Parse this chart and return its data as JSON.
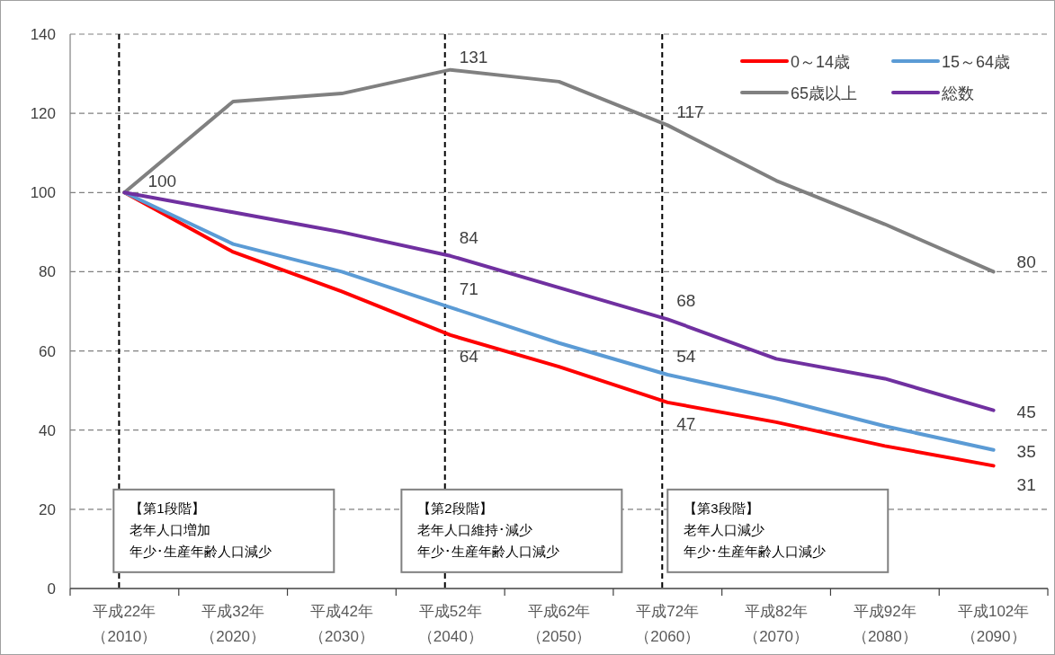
{
  "chart_data": {
    "type": "line",
    "categories": [
      "平成22年（2010）",
      "平成32年（2020）",
      "平成42年（2030）",
      "平成52年（2040）",
      "平成62年（2050）",
      "平成72年（2060）",
      "平成82年（2070）",
      "平成92年（2080）",
      "平成102年（2090）"
    ],
    "series": [
      {
        "name": "0～14歳",
        "color": "#ff0000",
        "values": [
          100,
          85,
          75,
          64,
          56,
          47,
          42,
          36,
          31
        ],
        "value_labels": [
          null,
          null,
          null,
          "64",
          null,
          "47",
          null,
          null,
          "31"
        ]
      },
      {
        "name": "15～64歳",
        "color": "#5b9bd5",
        "values": [
          100,
          87,
          80,
          71,
          62,
          54,
          48,
          41,
          35
        ],
        "value_labels": [
          null,
          null,
          null,
          "71",
          null,
          "54",
          null,
          null,
          "35"
        ]
      },
      {
        "name": "65歳以上",
        "color": "#808080",
        "values": [
          100,
          123,
          125,
          131,
          128,
          117,
          103,
          92,
          80
        ],
        "value_labels": [
          "100",
          null,
          null,
          "131",
          null,
          "117",
          null,
          null,
          "80"
        ]
      },
      {
        "name": "総数",
        "color": "#7030a0",
        "values": [
          100,
          95,
          90,
          84,
          76,
          68,
          58,
          53,
          45
        ],
        "value_labels": [
          null,
          null,
          null,
          "84",
          null,
          "68",
          null,
          null,
          "45"
        ]
      }
    ],
    "ylim": [
      0,
      140
    ],
    "yticks": [
      0,
      20,
      40,
      60,
      80,
      100,
      120,
      140
    ],
    "grid": "y",
    "legend": "top right",
    "marker": "none",
    "line_style": "solid",
    "ref_lines": [
      {
        "axis": "x",
        "value": "平成22年（2010）",
        "color": "#000000",
        "line_style": "dashed"
      },
      {
        "axis": "x",
        "value": "平成52年（2040）",
        "color": "#000000",
        "line_style": "dashed"
      },
      {
        "axis": "x",
        "value": "平成72年（2060）",
        "color": "#000000",
        "line_style": "dashed"
      }
    ],
    "annotations": [
      "【第1段階】",
      "老年人口増加",
      "年少･生産年齢人口減少",
      "【第2段階】",
      "老年人口維持･減少",
      "年少･生産年齢人口減少",
      "【第3段階】",
      "老年人口減少",
      "年少･生産年齢人口減少"
    ]
  }
}
